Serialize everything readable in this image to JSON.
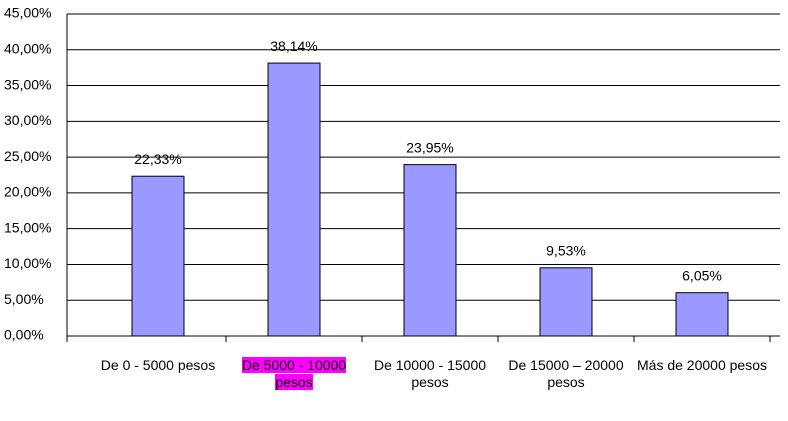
{
  "chart_data": {
    "type": "bar",
    "categories": [
      "De 0 - 5000 pesos",
      "De 5000 - 10000 pesos",
      "De 10000 - 15000 pesos",
      "De 15000 – 20000 pesos",
      "Más de 20000 pesos"
    ],
    "values": [
      22.33,
      38.14,
      23.95,
      9.53,
      6.05
    ],
    "value_labels": [
      "22,33%",
      "38,14%",
      "23,95%",
      "9,53%",
      "6,05%"
    ],
    "color": "#9999ff",
    "ylim": [
      0,
      45
    ],
    "yticks": [
      {
        "value": 0,
        "label": "0,00%"
      },
      {
        "value": 5,
        "label": "5,00%"
      },
      {
        "value": 10,
        "label": "10,00%"
      },
      {
        "value": 15,
        "label": "15,00%"
      },
      {
        "value": 20,
        "label": "20,00%"
      },
      {
        "value": 25,
        "label": "25,00%"
      },
      {
        "value": 30,
        "label": "30,00%"
      },
      {
        "value": 35,
        "label": "35,00%"
      },
      {
        "value": 40,
        "label": "40,00%"
      },
      {
        "value": 45,
        "label": "45,00%"
      }
    ],
    "grid": true
  }
}
